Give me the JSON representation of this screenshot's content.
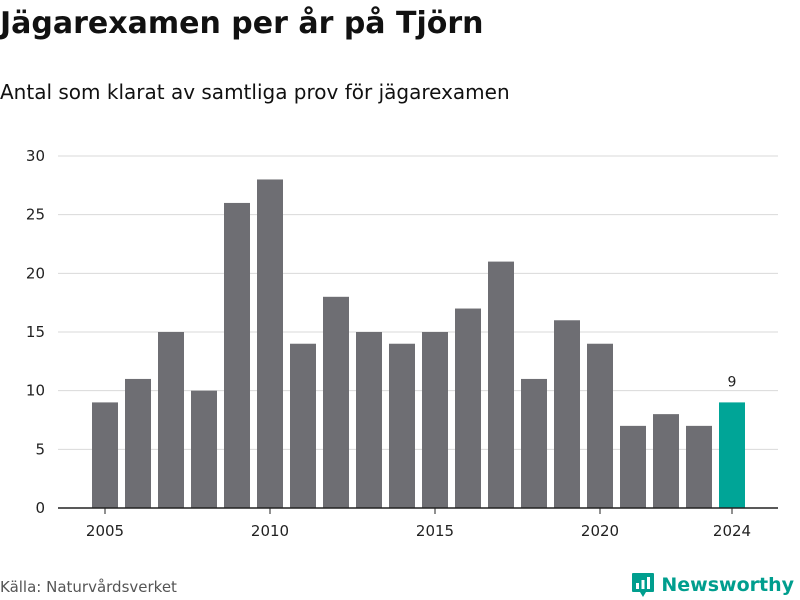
{
  "title": "Jägarexamen per år på Tjörn",
  "subtitle": "Antal som klarat av samtliga prov för jägarexamen",
  "source": "Källa: Naturvårdsverket",
  "brand": {
    "name": "Newsworthy",
    "icon": "newsworthy-logo-icon",
    "color": "#009e8e"
  },
  "colors": {
    "bar": "#6e6e73",
    "highlight": "#00a597",
    "grid": "#d9d9d9",
    "axis": "#222222"
  },
  "chart_data": {
    "type": "bar",
    "title": "Jägarexamen per år på Tjörn",
    "subtitle": "Antal som klarat av samtliga prov för jägarexamen",
    "xlabel": "",
    "ylabel": "",
    "x": [
      2005,
      2006,
      2007,
      2008,
      2009,
      2010,
      2011,
      2012,
      2013,
      2014,
      2015,
      2016,
      2017,
      2018,
      2019,
      2020,
      2021,
      2022,
      2023,
      2024
    ],
    "values": [
      9,
      11,
      15,
      10,
      26,
      28,
      14,
      18,
      15,
      14,
      15,
      17,
      21,
      11,
      16,
      14,
      7,
      8,
      7,
      9
    ],
    "ylim": [
      0,
      30
    ],
    "yticks": [
      0,
      5,
      10,
      15,
      20,
      25,
      30
    ],
    "xticks": [
      2005,
      2010,
      2015,
      2020,
      2024
    ],
    "highlight": 2024,
    "annotations": [
      {
        "x": 2024,
        "text": "9"
      }
    ],
    "grid": "horizontal",
    "legend": "none"
  }
}
